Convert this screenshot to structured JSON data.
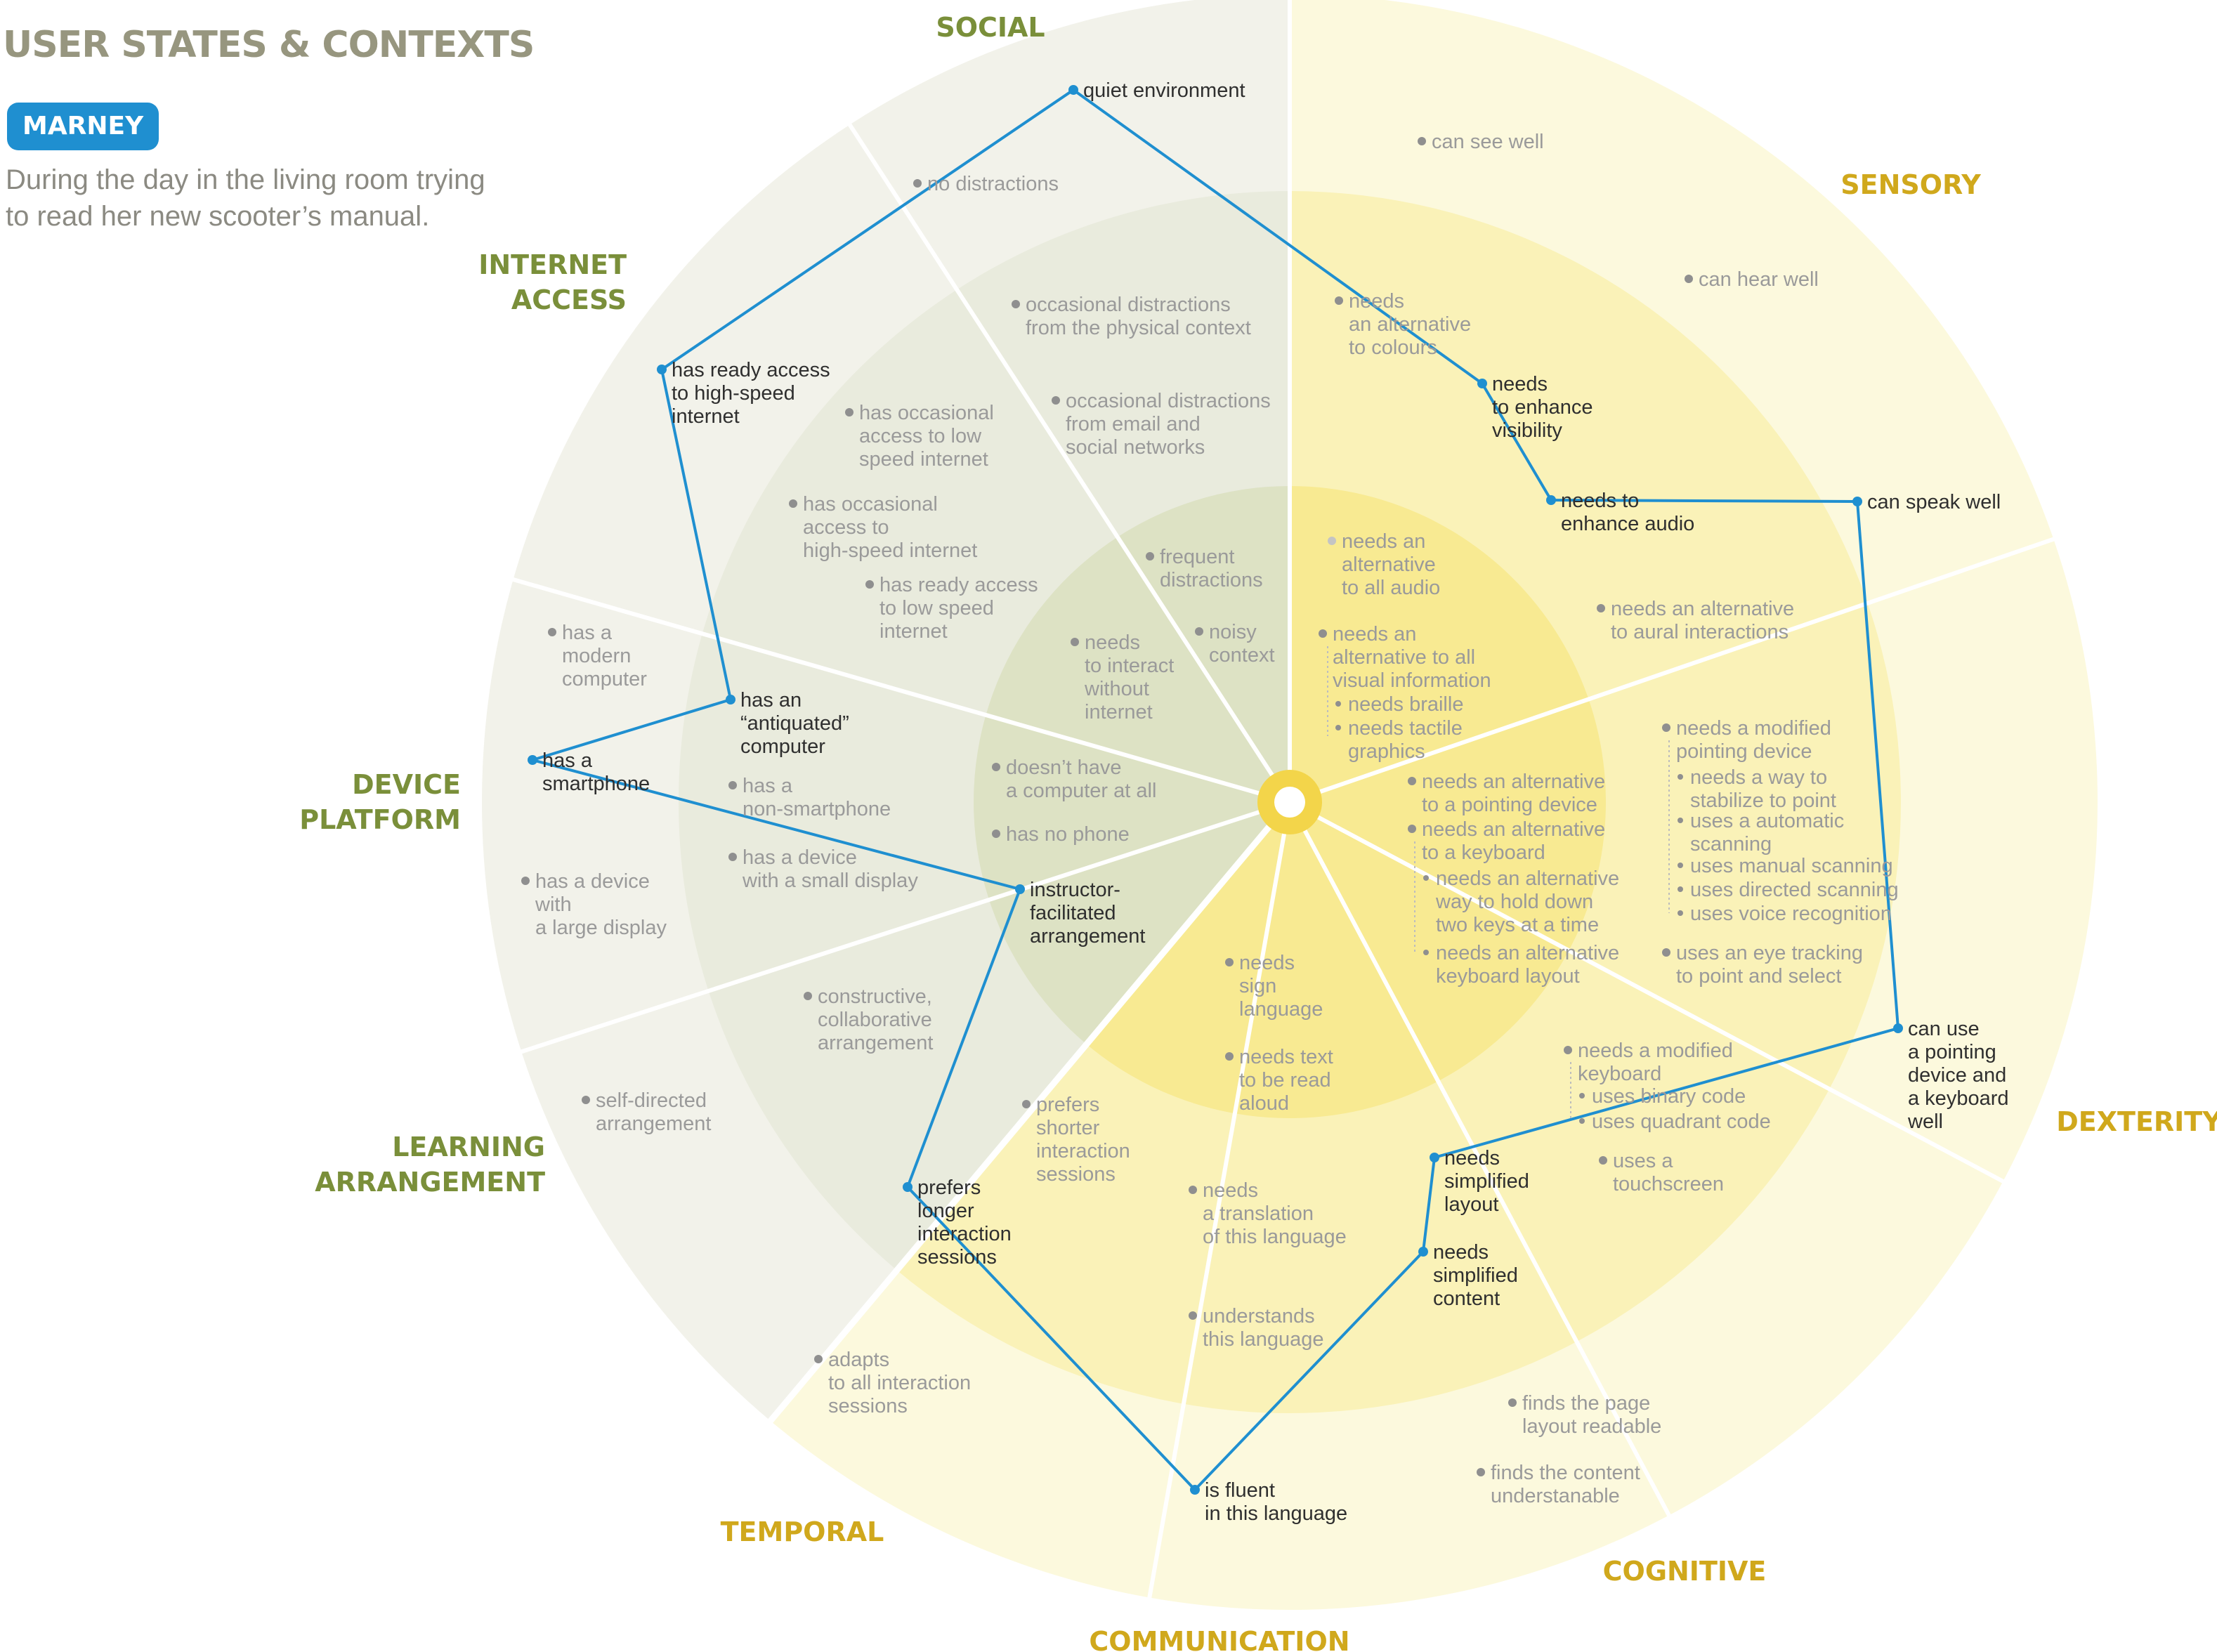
{
  "header": {
    "title": "USER STATES & CONTEXTS",
    "persona": "MARNEY",
    "description": [
      "During the day in the living room trying",
      "to read her new scooter’s manual."
    ]
  },
  "colors": {
    "green_label": "#7a8f3a",
    "yellow_label": "#d0a81c",
    "profile_line": "#1f8fd0",
    "state_text_active": "#2f2f2f",
    "state_text_inactive": "#9a9a9a"
  },
  "categories": [
    {
      "id": "social",
      "name": "SOCIAL",
      "group": "context"
    },
    {
      "id": "sensory",
      "name": "SENSORY",
      "group": "user"
    },
    {
      "id": "dexterity",
      "name": "DEXTERITY",
      "group": "user"
    },
    {
      "id": "cognitive",
      "name": "COGNITIVE",
      "group": "user"
    },
    {
      "id": "communication",
      "name": "COMMUNICATION",
      "group": "user"
    },
    {
      "id": "temporal",
      "name": "TEMPORAL",
      "group": "user"
    },
    {
      "id": "learning",
      "name": "LEARNING\nARRANGEMENT",
      "group": "context"
    },
    {
      "id": "device",
      "name": "DEVICE\nPLATFORM",
      "group": "context"
    },
    {
      "id": "internet",
      "name": "INTERNET\nACCESS",
      "group": "context"
    }
  ],
  "states": [
    {
      "cat": "social",
      "text": "quiet environment",
      "active": true
    },
    {
      "cat": "social",
      "text": "no distractions"
    },
    {
      "cat": "social",
      "text": "occasional distractions\nfrom the physical context"
    },
    {
      "cat": "social",
      "text": "occasional distractions\nfrom email and\nsocial networks"
    },
    {
      "cat": "social",
      "text": "frequent\ndistractions"
    },
    {
      "cat": "social",
      "text": "noisy\ncontext"
    },
    {
      "cat": "sensory",
      "text": "can see well"
    },
    {
      "cat": "sensory",
      "text": "can hear well"
    },
    {
      "cat": "sensory",
      "text": "needs\nan alternative\nto colours"
    },
    {
      "cat": "sensory",
      "text": "needs\nto enhance\nvisibility",
      "active": true
    },
    {
      "cat": "sensory",
      "text": "needs to\nenhance audio",
      "active": true
    },
    {
      "cat": "sensory",
      "text": "can speak well",
      "active": true
    },
    {
      "cat": "sensory",
      "text": "needs an\nalternative\nto all audio",
      "light": true
    },
    {
      "cat": "sensory",
      "text": "needs an alternative\nto aural interactions"
    },
    {
      "cat": "sensory",
      "text": "needs an\nalternative to all\nvisual information"
    },
    {
      "cat": "sensory",
      "text": "needs braille",
      "sub": true
    },
    {
      "cat": "sensory",
      "text": "needs tactile\ngraphics",
      "sub": true
    },
    {
      "cat": "dexterity",
      "text": "needs a modified\npointing device"
    },
    {
      "cat": "dexterity",
      "text": "needs a way to\nstabilize to point",
      "sub": true
    },
    {
      "cat": "dexterity",
      "text": "uses a automatic\nscanning",
      "sub": true
    },
    {
      "cat": "dexterity",
      "text": "uses manual scanning",
      "sub": true
    },
    {
      "cat": "dexterity",
      "text": "uses directed scanning",
      "sub": true
    },
    {
      "cat": "dexterity",
      "text": "uses voice recognition",
      "sub": true
    },
    {
      "cat": "dexterity",
      "text": "uses an eye tracking\nto point and select"
    },
    {
      "cat": "dexterity",
      "text": "needs an alternative\nto a pointing device"
    },
    {
      "cat": "dexterity",
      "text": "needs an alternative\nto a keyboard"
    },
    {
      "cat": "dexterity",
      "text": "needs an alternative\nway to hold down\ntwo keys at a time",
      "sub": true
    },
    {
      "cat": "dexterity",
      "text": "needs an alternative\nkeyboard layout",
      "sub": true
    },
    {
      "cat": "dexterity",
      "text": "can use\na pointing\ndevice and\na keyboard\nwell",
      "active": true
    },
    {
      "cat": "dexterity",
      "text": "needs a modified\nkeyboard"
    },
    {
      "cat": "dexterity",
      "text": "uses binary code",
      "sub": true
    },
    {
      "cat": "dexterity",
      "text": "uses quadrant code",
      "sub": true
    },
    {
      "cat": "dexterity",
      "text": "uses a\ntouchscreen"
    },
    {
      "cat": "cognitive",
      "text": "needs\nsimplified\nlayout",
      "active": true
    },
    {
      "cat": "cognitive",
      "text": "needs\nsimplified\ncontent",
      "active": true
    },
    {
      "cat": "cognitive",
      "text": "finds the page\nlayout readable"
    },
    {
      "cat": "cognitive",
      "text": "finds the content\nunderstanable"
    },
    {
      "cat": "communication",
      "text": "needs\nsign\nlanguage"
    },
    {
      "cat": "communication",
      "text": "needs text\nto be read\naloud"
    },
    {
      "cat": "communication",
      "text": "needs\na translation\nof this language"
    },
    {
      "cat": "communication",
      "text": "understands\nthis language"
    },
    {
      "cat": "communication",
      "text": "is fluent\nin this language",
      "active": true
    },
    {
      "cat": "temporal",
      "text": "prefers\nshorter\ninteraction\nsessions"
    },
    {
      "cat": "temporal",
      "text": "prefers\nlonger\ninteraction\nsessions",
      "active": true
    },
    {
      "cat": "temporal",
      "text": "adapts\nto all interaction\nsessions"
    },
    {
      "cat": "learning",
      "text": "constructive,\ncollaborative\narrangement"
    },
    {
      "cat": "learning",
      "text": "self-directed\narrangement"
    },
    {
      "cat": "learning",
      "text": "instructor-\nfacilitated\narrangement",
      "active": true
    },
    {
      "cat": "device",
      "text": "doesn’t have\na computer at all"
    },
    {
      "cat": "device",
      "text": "has no phone"
    },
    {
      "cat": "device",
      "text": "has a\nnon-smartphone"
    },
    {
      "cat": "device",
      "text": "has a device\nwith a small display"
    },
    {
      "cat": "device",
      "text": "has a\nsmartphone",
      "active": true
    },
    {
      "cat": "device",
      "text": "has a device\nwith\na large display"
    },
    {
      "cat": "device",
      "text": "has a\nmodern\ncomputer"
    },
    {
      "cat": "device",
      "text": "has an\n“antiquated”\ncomputer",
      "active": true
    },
    {
      "cat": "internet",
      "text": "has ready access\nto high-speed\ninternet",
      "active": true
    },
    {
      "cat": "internet",
      "text": "has occasional\naccess to low\nspeed internet"
    },
    {
      "cat": "internet",
      "text": "has occasional\naccess to\nhigh-speed internet"
    },
    {
      "cat": "internet",
      "text": "has ready access\nto low speed\ninternet"
    },
    {
      "cat": "internet",
      "text": "needs\nto interact\nwithout\ninternet"
    }
  ]
}
